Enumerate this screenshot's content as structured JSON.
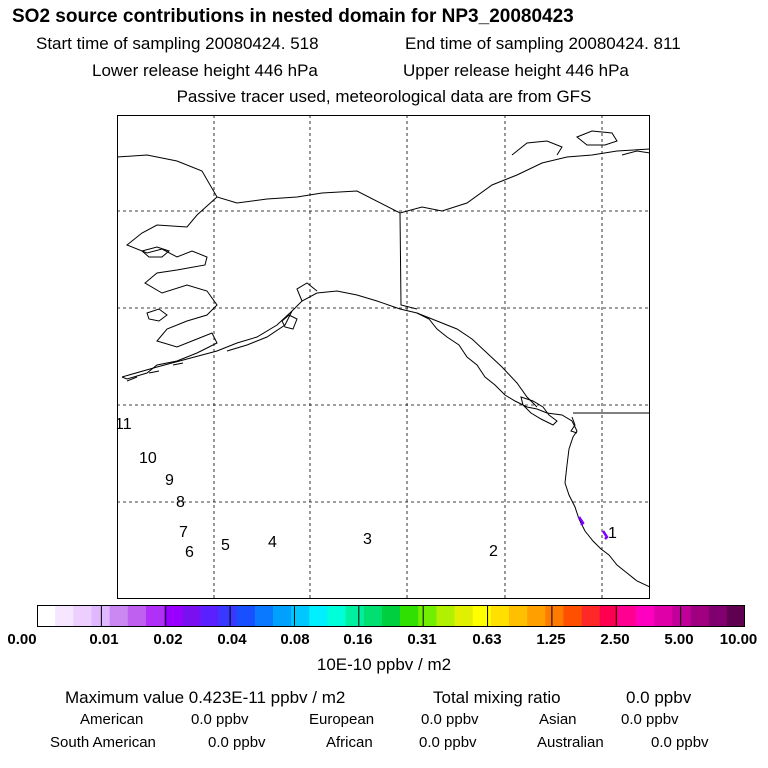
{
  "header": {
    "title": "SO2 source contributions in nested domain for NP3_20080423",
    "start_time": "Start time of sampling 20080424.   518",
    "end_time": "End time of sampling 20080424.   811",
    "lower_release": "Lower release height  446 hPa",
    "upper_release": "Upper release height  446 hPa",
    "tracer_note": "Passive tracer used, meteorological data are from GFS"
  },
  "map": {
    "track_labels": [
      "1",
      "2",
      "3",
      "4",
      "5",
      "6",
      "7",
      "8",
      "9",
      "10",
      "11"
    ],
    "colors": {
      "coastline": "#000000",
      "grid": "#000000",
      "plume": "#7a00ff"
    }
  },
  "colorbar": {
    "tick_labels": [
      "0.00",
      "0.01",
      "0.02",
      "0.04",
      "0.08",
      "0.16",
      "0.31",
      "0.63",
      "1.25",
      "2.50",
      "5.00",
      "10.00"
    ],
    "unit": "10E-10 ppbv / m2",
    "colors": [
      "#ffffff",
      "#f6e6ff",
      "#eccfff",
      "#e0b8ff",
      "#cc88f2",
      "#c060f0",
      "#b030f8",
      "#9a00ff",
      "#7a10f0",
      "#5a20ff",
      "#3838ff",
      "#1850ff",
      "#0a78ff",
      "#00a0ff",
      "#00c8ff",
      "#00f0ff",
      "#00ffd8",
      "#00f0a0",
      "#00e070",
      "#00d040",
      "#30e000",
      "#70f000",
      "#b0f000",
      "#e0f000",
      "#ffff00",
      "#ffe000",
      "#ffc000",
      "#ffa000",
      "#ff7a00",
      "#ff5000",
      "#ff2828",
      "#ff0050",
      "#ff0090",
      "#ff00c0",
      "#e000a8",
      "#c00098",
      "#a00080",
      "#800070",
      "#600050"
    ]
  },
  "summary": {
    "max_value": "Maximum value  0.423E-11 ppbv / m2",
    "total_mixing": "Total mixing ratio",
    "total_value": "0.0 ppbv",
    "american_label": "American",
    "american_value": "0.0 ppbv",
    "european_label": "European",
    "european_value": "0.0 ppbv",
    "asian_label": "Asian",
    "asian_value": "0.0 ppbv",
    "south_american_label": "South American",
    "south_american_value": "0.0 ppbv",
    "african_label": "African",
    "african_value": "0.0 ppbv",
    "australian_label": "Australian",
    "australian_value": "0.0 ppbv"
  }
}
